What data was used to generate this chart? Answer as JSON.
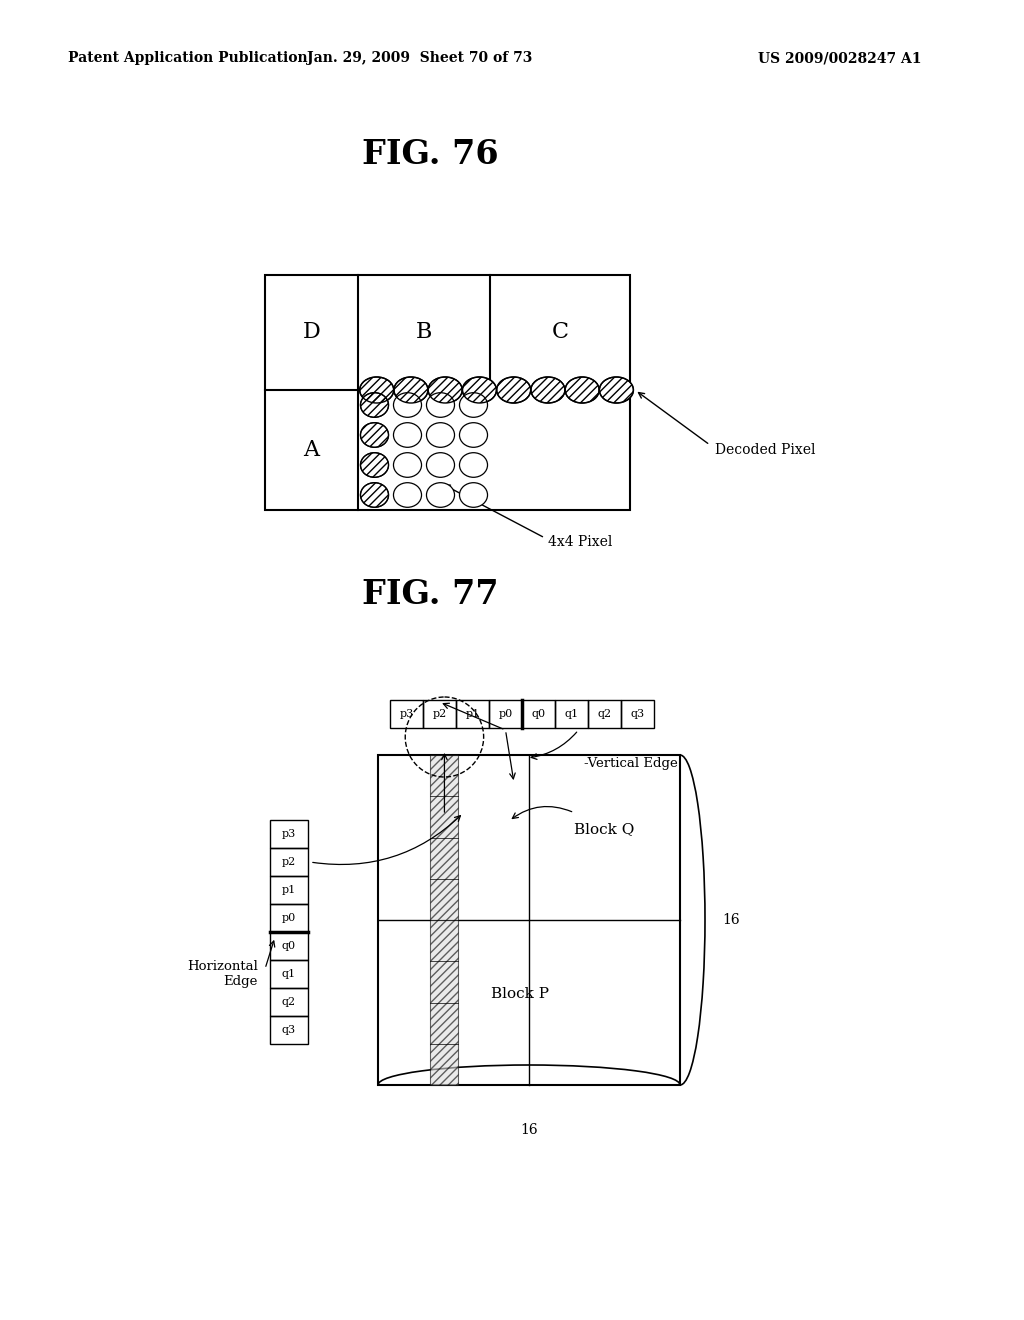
{
  "bg": "#ffffff",
  "header_left": "Patent Application Publication",
  "header_mid": "Jan. 29, 2009  Sheet 70 of 73",
  "header_right": "US 2009/0028247 A1",
  "fig76_title": "FIG. 76",
  "fig77_title": "FIG. 77",
  "decoded_pixel_label": "Decoded Pixel",
  "pixel_4x4_label": "4x4 Pixel",
  "vertical_edge_label": "-Vertical Edge",
  "horizontal_edge_label": "Horizontal\nEdge",
  "size_label": "16",
  "fig76_D": "D",
  "fig76_B": "B",
  "fig76_C": "C",
  "fig76_A": "A",
  "fig77_labels_top": [
    "p3",
    "p2",
    "p1",
    "p0",
    "q0",
    "q1",
    "q2",
    "q3"
  ],
  "fig77_labels_left": [
    "p3",
    "p2",
    "p1",
    "p0",
    "q0",
    "q1",
    "q2",
    "q3"
  ],
  "block_q": "Block Q",
  "block_p": "Block P"
}
